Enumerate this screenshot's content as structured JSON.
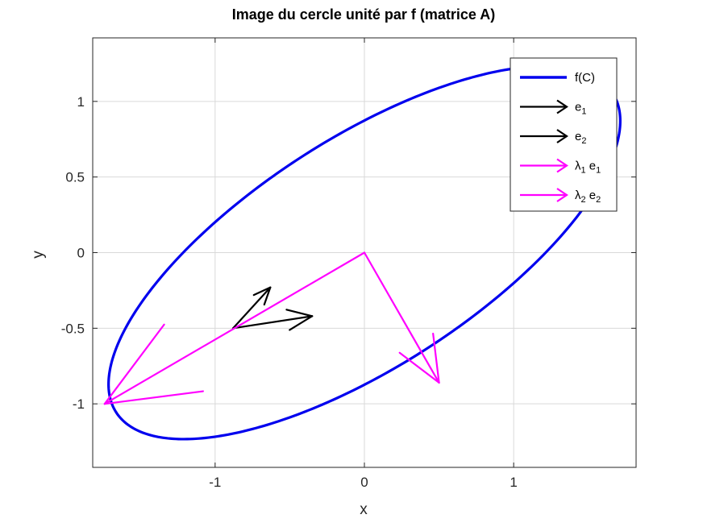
{
  "chart_data": {
    "type": "line",
    "title": "Image du cercle unité par f (matrice A)",
    "xlabel": "x",
    "ylabel": "y",
    "xlim": [
      -1.82,
      1.82
    ],
    "ylim": [
      -1.42,
      1.42
    ],
    "grid": true,
    "xticks": [
      -1,
      0,
      1
    ],
    "xtick_labels": [
      "-1",
      "0",
      "1"
    ],
    "yticks": [
      -1,
      -0.5,
      0,
      0.5,
      1
    ],
    "ytick_labels": [
      "-1",
      "-0.5",
      "0",
      "0.5",
      "1"
    ],
    "legend_position": "top-right",
    "colors": {
      "ellipse": "#0000ee",
      "basis": "#000000",
      "eigen": "#ff00ff"
    },
    "series": [
      {
        "name": "f(C)",
        "kind": "ellipse",
        "center": [
          0,
          0
        ],
        "semi_axes": [
          1.97,
          0.76
        ],
        "angle_deg": 32.3
      },
      {
        "name": "e1",
        "kind": "arrow",
        "origin": [
          -0.88,
          -0.5
        ],
        "vector": [
          0.53,
          0.08
        ]
      },
      {
        "name": "e2",
        "kind": "arrow",
        "origin": [
          -0.88,
          -0.5
        ],
        "vector": [
          0.25,
          0.27
        ]
      },
      {
        "name": "λ1 e1",
        "kind": "arrow",
        "origin": [
          0,
          0
        ],
        "vector": [
          -1.74,
          -1.0
        ]
      },
      {
        "name": "λ2 e2",
        "kind": "arrow",
        "origin": [
          0,
          0
        ],
        "vector": [
          0.5,
          -0.86
        ]
      }
    ],
    "legend": [
      {
        "base": "f(C)",
        "sub": "",
        "tail": "",
        "style": "line",
        "color": "#0000ee"
      },
      {
        "base": "e",
        "sub": "1",
        "tail": "",
        "style": "arrow",
        "color": "#000000"
      },
      {
        "base": "e",
        "sub": "2",
        "tail": "",
        "style": "arrow",
        "color": "#000000"
      },
      {
        "base": "λ",
        "sub": "1",
        "tail": " e",
        "tail_sub": "1",
        "style": "arrow",
        "color": "#ff00ff"
      },
      {
        "base": "λ",
        "sub": "2",
        "tail": " e",
        "tail_sub": "2",
        "style": "arrow",
        "color": "#ff00ff"
      }
    ]
  }
}
